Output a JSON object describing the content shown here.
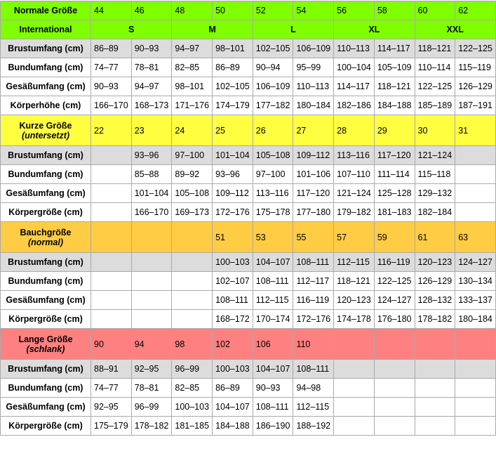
{
  "normal": {
    "title": "Normale Größe",
    "sizes": [
      44,
      46,
      48,
      50,
      52,
      54,
      56,
      58,
      60,
      62
    ],
    "international": {
      "label": "International",
      "values": [
        "S",
        "M",
        "L",
        "XL",
        "XXL"
      ]
    },
    "rows": [
      {
        "label": "Brustumfang (cm)",
        "values": [
          "86–89",
          "90–93",
          "94–97",
          "98–101",
          "102–105",
          "106–109",
          "110–113",
          "114–117",
          "118–121",
          "122–125"
        ]
      },
      {
        "label": "Bundumfang (cm)",
        "values": [
          "74–77",
          "78–81",
          "82–85",
          "86–89",
          "90–94",
          "95–99",
          "100–104",
          "105–109",
          "110–114",
          "115–119"
        ]
      },
      {
        "label": "Gesäßumfang (cm)",
        "values": [
          "90–93",
          "94–97",
          "98–101",
          "102–105",
          "106–109",
          "110–113",
          "114–117",
          "118–121",
          "122–125",
          "126–129"
        ]
      },
      {
        "label": "Körperhöhe (cm)",
        "values": [
          "166–170",
          "168–173",
          "171–176",
          "174–179",
          "177–182",
          "180–184",
          "182–186",
          "184–188",
          "185–189",
          "187–191"
        ]
      }
    ]
  },
  "short": {
    "title": "Kurze Größe",
    "note": "(untersetzt)",
    "sizes": [
      22,
      23,
      24,
      25,
      26,
      27,
      28,
      29,
      30,
      31
    ],
    "rows": [
      {
        "label": "Brustumfang (cm)",
        "values": [
          null,
          "93–96",
          "97–100",
          "101–104",
          "105–108",
          "109–112",
          "113–116",
          "117–120",
          "121–124",
          null
        ]
      },
      {
        "label": "Bundumfang (cm)",
        "values": [
          null,
          "85–88",
          "89–92",
          "93–96",
          "97–100",
          "101–106",
          "107–110",
          "111–114",
          "115–118",
          null
        ]
      },
      {
        "label": "Gesäßumfang (cm)",
        "values": [
          null,
          "101–104",
          "105–108",
          "109–112",
          "113–116",
          "117–120",
          "121–124",
          "125–128",
          "129–132",
          null
        ]
      },
      {
        "label": "Körpergröße (cm)",
        "values": [
          null,
          "166–170",
          "169–173",
          "172–176",
          "175–178",
          "177–180",
          "179–182",
          "181–183",
          "182–184",
          null
        ]
      }
    ]
  },
  "belly": {
    "title": "Bauchgröße",
    "note": "(normal)",
    "sizes": [
      null,
      null,
      null,
      51,
      53,
      55,
      57,
      59,
      61,
      63
    ],
    "rows": [
      {
        "label": "Brustumfang (cm)",
        "values": [
          null,
          null,
          null,
          "100–103",
          "104–107",
          "108–111",
          "112–115",
          "116–119",
          "120–123",
          "124–127"
        ]
      },
      {
        "label": "Bundumfang (cm)",
        "values": [
          null,
          null,
          null,
          "102–107",
          "108–111",
          "112–117",
          "118–121",
          "122–125",
          "126–129",
          "130–134"
        ]
      },
      {
        "label": "Gesäßumfang (cm)",
        "values": [
          null,
          null,
          null,
          "108–111",
          "112–115",
          "116–119",
          "120–123",
          "124–127",
          "128–132",
          "133–137"
        ]
      },
      {
        "label": "Körpergröße (cm)",
        "values": [
          null,
          null,
          null,
          "168–172",
          "170–174",
          "172–176",
          "174–178",
          "176–180",
          "178–182",
          "180–184"
        ]
      }
    ]
  },
  "long": {
    "title": "Lange Größe",
    "note": "(schlank)",
    "sizes": [
      90,
      94,
      98,
      102,
      106,
      110,
      null,
      null,
      null,
      null
    ],
    "rows": [
      {
        "label": "Brustumfang (cm)",
        "values": [
          "88–91",
          "92–95",
          "96–99",
          "100–103",
          "104–107",
          "108–111",
          null,
          null,
          null,
          null
        ]
      },
      {
        "label": "Bundumfang (cm)",
        "values": [
          "74–77",
          "78–81",
          "82–85",
          "86–89",
          "90–93",
          "94–98",
          null,
          null,
          null,
          null
        ]
      },
      {
        "label": "Gesäßumfang (cm)",
        "values": [
          "92–95",
          "96–99",
          "100–103",
          "104–107",
          "108–111",
          "112–115",
          null,
          null,
          null,
          null
        ]
      },
      {
        "label": "Körpergröße (cm)",
        "values": [
          "175–179",
          "178–182",
          "181–185",
          "184–188",
          "186–190",
          "188–192",
          null,
          null,
          null,
          null
        ]
      }
    ]
  }
}
